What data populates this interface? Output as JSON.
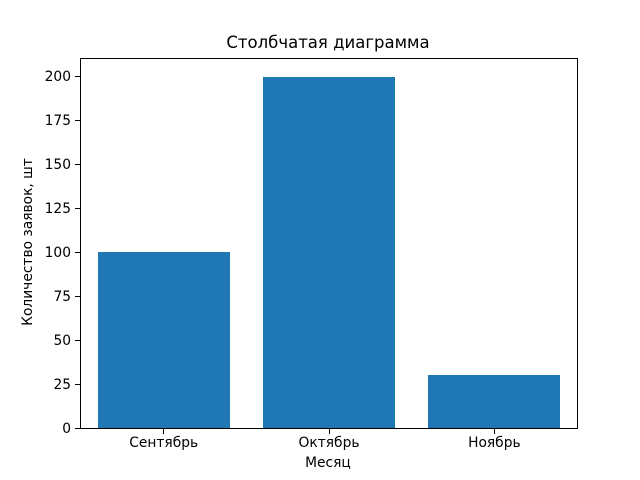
{
  "chart_data": {
    "type": "bar",
    "title": "Столбчатая диаграмма",
    "xlabel": "Месяц",
    "ylabel": "Количество заявок, шт",
    "categories": [
      "Сентябрь",
      "Октябрь",
      "Ноябрь"
    ],
    "values": [
      100,
      200,
      30
    ],
    "yticks": [
      0,
      25,
      50,
      75,
      100,
      125,
      150,
      175,
      200
    ],
    "ylim": [
      0,
      210
    ],
    "bar_width_fraction": 0.8,
    "bar_color": "#1f77b4",
    "spine_color": "#000000",
    "text_color": "#000000",
    "background_color": "#ffffff",
    "grid": "off",
    "legend": "none"
  }
}
